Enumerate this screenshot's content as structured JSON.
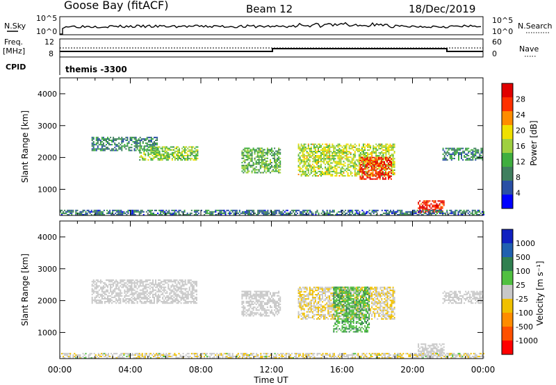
{
  "header": {
    "station": "Goose Bay (fitACF)",
    "beam": "Beam 12",
    "date": "18/Dec/2019"
  },
  "strip_labels": {
    "nsky": "N.Sky",
    "nsky_ticks": [
      "10^5",
      "10^0"
    ],
    "nsearch": "N.Search",
    "freq_line1": "Freq.",
    "freq_line2": "[MHz]",
    "freq_ticks_left": [
      "12",
      "8"
    ],
    "nave_ticks_right": [
      "60",
      "0"
    ],
    "nave": "Nave",
    "cpid": "CPID",
    "cpid_value": "themis -3300"
  },
  "colors": {
    "power_scale": [
      "#0000ff",
      "#2a4fa5",
      "#3f7f5f",
      "#3fae3f",
      "#9fd03f",
      "#f0e000",
      "#ff8c00",
      "#ff3000",
      "#e00000"
    ],
    "velocity_scale": [
      "#1020c0",
      "#2060b0",
      "#308050",
      "#50c040",
      "#c8c8c8",
      "#f0c000",
      "#ff8c00",
      "#ff5000",
      "#ff0000"
    ],
    "ground_scatter": "#c8c8c8"
  },
  "chart_data": [
    {
      "type": "heatmap",
      "title": "Power",
      "xlabel": "Time UT",
      "ylabel": "Slant Range [km]",
      "xlim": [
        "00:00",
        "24:00"
      ],
      "ylim": [
        180,
        4500
      ],
      "x_ticks": [
        "00:00",
        "04:00",
        "08:00",
        "12:00",
        "16:00",
        "20:00",
        "00:00"
      ],
      "y_ticks": [
        "1000",
        "2000",
        "3000",
        "4000"
      ],
      "colorbar": {
        "label": "Power [dB]",
        "ticks": [
          "4",
          "8",
          "12",
          "16",
          "20",
          "24",
          "28"
        ],
        "range": [
          0,
          30
        ]
      },
      "regions": [
        {
          "t_start": 1.8,
          "t_end": 5.5,
          "r_low": 2200,
          "r_high": 2650,
          "value": 8
        },
        {
          "t_start": 4.5,
          "t_end": 7.8,
          "r_low": 1900,
          "r_high": 2350,
          "value": 14
        },
        {
          "t_start": 10.3,
          "t_end": 12.5,
          "r_low": 1500,
          "r_high": 2300,
          "value": 12
        },
        {
          "t_start": 13.5,
          "t_end": 19.0,
          "r_low": 1400,
          "r_high": 2400,
          "value": 16
        },
        {
          "t_start": 17.0,
          "t_end": 18.8,
          "r_low": 1300,
          "r_high": 2000,
          "value": 28
        },
        {
          "t_start": 20.3,
          "t_end": 21.8,
          "r_low": 250,
          "r_high": 650,
          "value": 28
        },
        {
          "t_start": 21.7,
          "t_end": 24.0,
          "r_low": 1900,
          "r_high": 2300,
          "value": 8
        },
        {
          "t_start": 0.0,
          "t_end": 24.0,
          "r_low": 180,
          "r_high": 350,
          "value": 6
        }
      ]
    },
    {
      "type": "heatmap",
      "title": "Velocity",
      "xlabel": "Time UT",
      "ylabel": "Slant Range [km]",
      "xlim": [
        "00:00",
        "24:00"
      ],
      "ylim": [
        180,
        4500
      ],
      "x_ticks": [
        "00:00",
        "04:00",
        "08:00",
        "12:00",
        "16:00",
        "20:00",
        "00:00"
      ],
      "y_ticks": [
        "1000",
        "2000",
        "3000",
        "4000"
      ],
      "colorbar": {
        "label": "Velocity [m s⁻¹]",
        "ticks": [
          "1000",
          "500",
          "100",
          "25",
          "-25",
          "-100",
          "-500",
          "-1000"
        ],
        "range": [
          -1000,
          1000
        ]
      },
      "regions": [
        {
          "t_start": 1.8,
          "t_end": 7.8,
          "r_low": 1900,
          "r_high": 2650,
          "value": 0
        },
        {
          "t_start": 10.3,
          "t_end": 12.5,
          "r_low": 1500,
          "r_high": 2300,
          "value": 0
        },
        {
          "t_start": 13.5,
          "t_end": 19.0,
          "r_low": 1400,
          "r_high": 2400,
          "value": -100
        },
        {
          "t_start": 15.5,
          "t_end": 17.5,
          "r_low": 1000,
          "r_high": 2400,
          "value": 300
        },
        {
          "t_start": 20.3,
          "t_end": 21.8,
          "r_low": 250,
          "r_high": 650,
          "value": 0
        },
        {
          "t_start": 21.7,
          "t_end": 24.0,
          "r_low": 1900,
          "r_high": 2300,
          "value": 0
        },
        {
          "t_start": 0.0,
          "t_end": 24.0,
          "r_low": 180,
          "r_high": 350,
          "value": -50
        }
      ]
    }
  ]
}
